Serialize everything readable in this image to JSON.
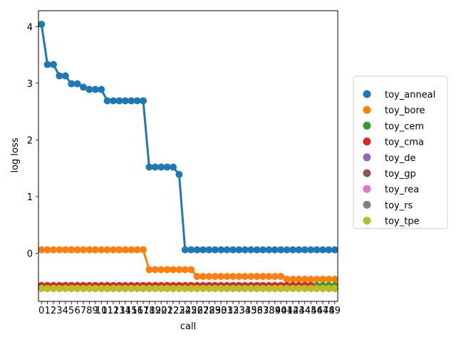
{
  "chart_data": {
    "type": "line",
    "xlabel": "call",
    "ylabel": "log loss",
    "x": [
      0,
      1,
      2,
      3,
      4,
      5,
      6,
      7,
      8,
      9,
      10,
      11,
      12,
      13,
      14,
      15,
      16,
      17,
      18,
      19,
      20,
      21,
      22,
      23,
      24,
      25,
      26,
      27,
      28,
      29,
      30,
      31,
      32,
      33,
      34,
      35,
      36,
      37,
      38,
      39,
      40,
      41,
      42,
      43,
      44,
      45,
      46,
      47,
      48,
      49
    ],
    "xlim": [
      -0.5,
      49.5
    ],
    "ylim": [
      -0.85,
      4.28
    ],
    "yticks": [
      0,
      1,
      2,
      3,
      4
    ],
    "grid": false,
    "legend_position": "outside-right",
    "series": [
      {
        "name": "toy_anneal",
        "color": "#1f77b4",
        "values": [
          4.04,
          3.33,
          3.33,
          3.13,
          3.13,
          2.99,
          2.99,
          2.93,
          2.89,
          2.89,
          2.89,
          2.69,
          2.69,
          2.69,
          2.69,
          2.69,
          2.69,
          2.69,
          1.52,
          1.52,
          1.52,
          1.52,
          1.52,
          1.39,
          0.06,
          0.06,
          0.06,
          0.06,
          0.06,
          0.06,
          0.06,
          0.06,
          0.06,
          0.06,
          0.06,
          0.06,
          0.06,
          0.06,
          0.06,
          0.06,
          0.06,
          0.06,
          0.06,
          0.06,
          0.06,
          0.06,
          0.06,
          0.06,
          0.06,
          0.06
        ]
      },
      {
        "name": "toy_bore",
        "color": "#ff7f0e",
        "values": [
          0.06,
          0.06,
          0.06,
          0.06,
          0.06,
          0.06,
          0.06,
          0.06,
          0.06,
          0.06,
          0.06,
          0.06,
          0.06,
          0.06,
          0.06,
          0.06,
          0.06,
          0.06,
          -0.29,
          -0.29,
          -0.29,
          -0.29,
          -0.29,
          -0.29,
          -0.29,
          -0.29,
          -0.41,
          -0.41,
          -0.41,
          -0.41,
          -0.41,
          -0.41,
          -0.41,
          -0.41,
          -0.41,
          -0.41,
          -0.41,
          -0.41,
          -0.41,
          -0.41,
          -0.41,
          -0.46,
          -0.46,
          -0.46,
          -0.46,
          -0.46,
          -0.46,
          -0.46,
          -0.46,
          -0.46
        ]
      },
      {
        "name": "toy_cem",
        "color": "#2ca02c",
        "values": [
          -0.57,
          -0.57,
          -0.57,
          -0.57,
          -0.57,
          -0.57,
          -0.57,
          -0.57,
          -0.57,
          -0.57,
          -0.57,
          -0.57,
          -0.57,
          -0.57,
          -0.57,
          -0.57,
          -0.57,
          -0.57,
          -0.57,
          -0.57,
          -0.57,
          -0.57,
          -0.57,
          -0.57,
          -0.57,
          -0.57,
          -0.57,
          -0.57,
          -0.57,
          -0.57,
          -0.57,
          -0.57,
          -0.57,
          -0.57,
          -0.57,
          -0.57,
          -0.57,
          -0.57,
          -0.57,
          -0.57,
          -0.57,
          -0.57,
          -0.57,
          -0.57,
          -0.57,
          -0.57,
          -0.57,
          -0.57,
          -0.57,
          -0.57
        ]
      },
      {
        "name": "toy_cma",
        "color": "#d62728",
        "values": [
          -0.57,
          -0.57,
          -0.57,
          -0.57,
          -0.57,
          -0.57,
          -0.57,
          -0.57,
          -0.57,
          -0.57,
          -0.57,
          -0.57,
          -0.57,
          -0.57,
          -0.57,
          -0.57,
          -0.57,
          -0.57,
          -0.57,
          -0.57,
          -0.57,
          -0.57,
          -0.57,
          -0.57,
          -0.57,
          -0.57,
          -0.57,
          -0.57,
          -0.57,
          -0.57,
          -0.57,
          -0.57,
          -0.57,
          -0.57,
          -0.57,
          -0.57,
          -0.57,
          -0.57,
          -0.57,
          -0.57,
          -0.57,
          -0.57,
          -0.57,
          -0.57,
          -0.57,
          -0.57,
          -0.62,
          -0.62,
          -0.62,
          -0.62
        ]
      },
      {
        "name": "toy_de",
        "color": "#9467bd",
        "values": [
          -0.62,
          -0.62,
          -0.62,
          -0.62,
          -0.62,
          -0.62,
          -0.62,
          -0.62,
          -0.62,
          -0.62,
          -0.62,
          -0.62,
          -0.62,
          -0.62,
          -0.62,
          -0.62,
          -0.62,
          -0.62,
          -0.62,
          -0.62,
          -0.62,
          -0.62,
          -0.62,
          -0.62,
          -0.62,
          -0.62,
          -0.62,
          -0.62,
          -0.62,
          -0.62,
          -0.62,
          -0.62,
          -0.62,
          -0.62,
          -0.62,
          -0.62,
          -0.62,
          -0.62,
          -0.62,
          -0.62,
          -0.62,
          -0.62,
          -0.62,
          -0.62,
          -0.62,
          -0.62,
          -0.62,
          -0.62,
          -0.62,
          -0.62
        ]
      },
      {
        "name": "toy_gp",
        "color": "#8c564b",
        "values": [
          -0.62,
          -0.62,
          -0.62,
          -0.62,
          -0.62,
          -0.62,
          -0.62,
          -0.62,
          -0.62,
          -0.62,
          -0.62,
          -0.62,
          -0.62,
          -0.62,
          -0.62,
          -0.62,
          -0.62,
          -0.62,
          -0.62,
          -0.62,
          -0.62,
          -0.62,
          -0.62,
          -0.62,
          -0.62,
          -0.62,
          -0.62,
          -0.62,
          -0.62,
          -0.62,
          -0.62,
          -0.62,
          -0.62,
          -0.62,
          -0.62,
          -0.62,
          -0.62,
          -0.62,
          -0.62,
          -0.62,
          -0.62,
          -0.62,
          -0.62,
          -0.62,
          -0.62,
          -0.62,
          -0.62,
          -0.62,
          -0.62,
          -0.62
        ]
      },
      {
        "name": "toy_rea",
        "color": "#e377c2",
        "values": [
          -0.62,
          -0.62,
          -0.62,
          -0.62,
          -0.62,
          -0.62,
          -0.62,
          -0.62,
          -0.62,
          -0.62,
          -0.62,
          -0.62,
          -0.62,
          -0.62,
          -0.62,
          -0.62,
          -0.62,
          -0.62,
          -0.62,
          -0.62,
          -0.62,
          -0.62,
          -0.62,
          -0.62,
          -0.62,
          -0.62,
          -0.62,
          -0.62,
          -0.62,
          -0.62,
          -0.62,
          -0.62,
          -0.62,
          -0.62,
          -0.62,
          -0.62,
          -0.62,
          -0.62,
          -0.62,
          -0.62,
          -0.62,
          -0.62,
          -0.62,
          -0.62,
          -0.62,
          -0.62,
          -0.62,
          -0.62,
          -0.62,
          -0.62
        ]
      },
      {
        "name": "toy_rs",
        "color": "#7f7f7f",
        "values": [
          -0.62,
          -0.62,
          -0.62,
          -0.62,
          -0.62,
          -0.62,
          -0.62,
          -0.62,
          -0.62,
          -0.62,
          -0.62,
          -0.62,
          -0.62,
          -0.62,
          -0.62,
          -0.62,
          -0.62,
          -0.62,
          -0.62,
          -0.62,
          -0.62,
          -0.62,
          -0.62,
          -0.62,
          -0.62,
          -0.62,
          -0.62,
          -0.62,
          -0.62,
          -0.62,
          -0.62,
          -0.62,
          -0.62,
          -0.62,
          -0.62,
          -0.62,
          -0.62,
          -0.62,
          -0.62,
          -0.62,
          -0.62,
          -0.62,
          -0.62,
          -0.62,
          -0.62,
          -0.62,
          -0.62,
          -0.62,
          -0.62,
          -0.62
        ]
      },
      {
        "name": "toy_tpe",
        "color": "#bcbd22",
        "values": [
          -0.62,
          -0.62,
          -0.62,
          -0.62,
          -0.62,
          -0.62,
          -0.62,
          -0.62,
          -0.62,
          -0.62,
          -0.62,
          -0.62,
          -0.62,
          -0.62,
          -0.62,
          -0.62,
          -0.62,
          -0.62,
          -0.62,
          -0.62,
          -0.62,
          -0.62,
          -0.62,
          -0.62,
          -0.62,
          -0.62,
          -0.62,
          -0.62,
          -0.62,
          -0.62,
          -0.62,
          -0.62,
          -0.62,
          -0.62,
          -0.62,
          -0.62,
          -0.62,
          -0.62,
          -0.62,
          -0.62,
          -0.62,
          -0.62,
          -0.62,
          -0.62,
          -0.62,
          -0.62,
          -0.62,
          -0.62,
          -0.62,
          -0.62
        ]
      }
    ]
  }
}
